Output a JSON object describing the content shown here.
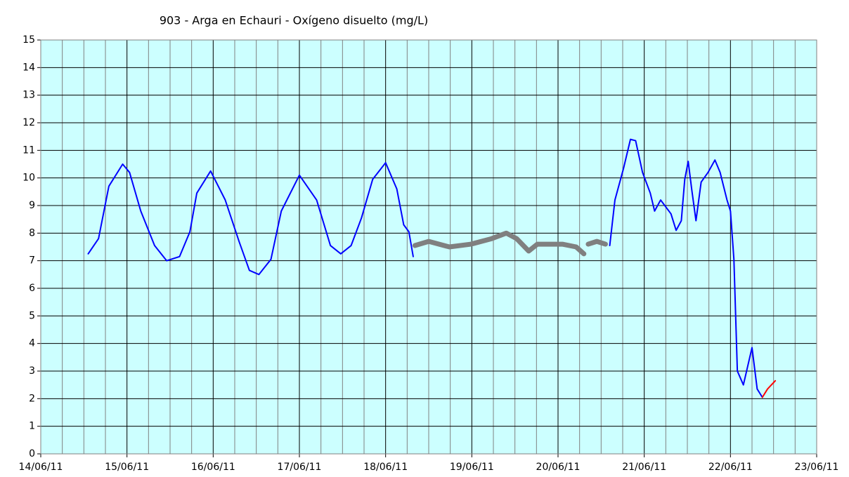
{
  "chart_data": {
    "type": "line",
    "title": "903 - Arga en Echauri - Oxígeno disuelto (mg/L)",
    "xlim": [
      14,
      23
    ],
    "xticks": [
      {
        "value": 14,
        "label": "14/06/11"
      },
      {
        "value": 15,
        "label": "15/06/11"
      },
      {
        "value": 16,
        "label": "16/06/11"
      },
      {
        "value": 17,
        "label": "17/06/11"
      },
      {
        "value": 18,
        "label": "18/06/11"
      },
      {
        "value": 19,
        "label": "19/06/11"
      },
      {
        "value": 20,
        "label": "20/06/11"
      },
      {
        "value": 21,
        "label": "21/06/11"
      },
      {
        "value": 22,
        "label": "22/06/11"
      },
      {
        "value": 23,
        "label": "23/06/11"
      }
    ],
    "x_minor_divisions": 4,
    "ylim": [
      0,
      15
    ],
    "yticks": [
      0,
      1,
      2,
      3,
      4,
      5,
      6,
      7,
      8,
      9,
      10,
      11,
      12,
      13,
      14,
      15
    ],
    "grid": true,
    "background": "#ccffff",
    "series": [
      {
        "color": "#0000ff",
        "width": 2,
        "x": [
          14.55,
          14.67,
          14.79,
          14.95,
          15.03,
          15.16,
          15.32,
          15.46,
          15.61,
          15.73,
          15.81,
          15.97,
          16.14,
          16.3,
          16.42,
          16.53,
          16.67,
          16.79,
          17.0,
          17.2,
          17.36,
          17.48,
          17.6,
          17.72,
          17.85,
          18.0,
          18.13,
          18.21,
          18.27,
          18.32,
          null,
          20.6,
          20.66,
          20.76,
          20.84,
          20.9,
          20.98,
          21.07,
          21.12,
          21.19,
          21.31,
          21.37,
          21.43,
          21.47,
          21.51,
          21.55,
          21.6,
          21.66,
          21.74,
          21.82,
          21.88,
          21.96,
          22.0,
          22.04,
          22.08,
          22.15,
          22.25,
          22.31,
          22.37
        ],
        "values": [
          7.25,
          7.8,
          9.7,
          10.5,
          10.2,
          8.8,
          7.55,
          7.0,
          7.15,
          8.05,
          9.45,
          10.25,
          9.2,
          7.7,
          6.65,
          6.5,
          7.05,
          8.8,
          10.1,
          9.2,
          7.55,
          7.25,
          7.55,
          8.55,
          9.95,
          10.55,
          9.6,
          8.3,
          8.05,
          7.15,
          null,
          7.55,
          9.2,
          10.35,
          11.4,
          11.35,
          10.2,
          9.45,
          8.8,
          9.2,
          8.7,
          8.1,
          8.45,
          9.95,
          10.6,
          9.6,
          8.45,
          9.85,
          10.2,
          10.65,
          10.2,
          9.2,
          8.8,
          7.05,
          3.0,
          2.5,
          3.85,
          2.35,
          2.05
        ]
      },
      {
        "color": "#808080",
        "width": 7,
        "x": [
          18.34,
          18.5,
          18.74,
          18.99,
          19.23,
          19.4,
          19.52,
          19.66,
          19.76,
          20.05,
          20.21,
          20.3,
          null,
          20.35,
          20.45,
          20.55
        ],
        "values": [
          7.55,
          7.7,
          7.5,
          7.6,
          7.8,
          8.0,
          7.8,
          7.35,
          7.6,
          7.6,
          7.5,
          7.25,
          null,
          7.6,
          7.7,
          7.6
        ]
      },
      {
        "color": "#ff0000",
        "width": 2,
        "x": [
          22.37,
          22.43,
          22.52
        ],
        "values": [
          2.05,
          2.35,
          2.65
        ]
      }
    ]
  }
}
